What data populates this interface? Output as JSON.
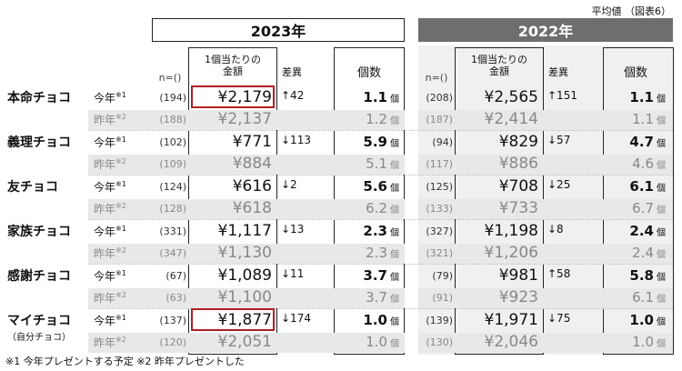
{
  "caption": "平均値 （図表6）",
  "year_headers": {
    "current": "2023年",
    "previous": "2022年"
  },
  "columns": {
    "n": "n=()",
    "amount_line1": "1個当たりの",
    "amount_line2": "金額",
    "diff": "差異",
    "count": "個数"
  },
  "labels": {
    "this_year": "今年",
    "last_year": "昨年",
    "mark1": "※1",
    "mark2": "※2",
    "unit": "個"
  },
  "rows": [
    {
      "category": "本命チョコ",
      "sub": "",
      "y2023": {
        "now_n": "(194)",
        "now_amt": "¥2,179",
        "diff": "↑42",
        "now_cnt": "1.1",
        "prev_n": "(188)",
        "prev_amt": "¥2,137",
        "prev_cnt": "1.2"
      },
      "y2022": {
        "now_n": "(208)",
        "now_amt": "¥2,565",
        "diff": "↑151",
        "now_cnt": "1.1",
        "prev_n": "(187)",
        "prev_amt": "¥2,414",
        "prev_cnt": "1.1"
      }
    },
    {
      "category": "義理チョコ",
      "sub": "",
      "y2023": {
        "now_n": "(102)",
        "now_amt": "¥771",
        "diff": "↓113",
        "now_cnt": "5.9",
        "prev_n": "(109)",
        "prev_amt": "¥884",
        "prev_cnt": "5.1"
      },
      "y2022": {
        "now_n": "(94)",
        "now_amt": "¥829",
        "diff": "↓57",
        "now_cnt": "4.7",
        "prev_n": "(117)",
        "prev_amt": "¥886",
        "prev_cnt": "4.6"
      }
    },
    {
      "category": "友チョコ",
      "sub": "",
      "y2023": {
        "now_n": "(124)",
        "now_amt": "¥616",
        "diff": "↓2",
        "now_cnt": "5.6",
        "prev_n": "(128)",
        "prev_amt": "¥618",
        "prev_cnt": "6.2"
      },
      "y2022": {
        "now_n": "(125)",
        "now_amt": "¥708",
        "diff": "↓25",
        "now_cnt": "6.1",
        "prev_n": "(133)",
        "prev_amt": "¥733",
        "prev_cnt": "6.7"
      }
    },
    {
      "category": "家族チョコ",
      "sub": "",
      "y2023": {
        "now_n": "(331)",
        "now_amt": "¥1,117",
        "diff": "↓13",
        "now_cnt": "2.3",
        "prev_n": "(347)",
        "prev_amt": "¥1,130",
        "prev_cnt": "2.3"
      },
      "y2022": {
        "now_n": "(327)",
        "now_amt": "¥1,198",
        "diff": "↓8",
        "now_cnt": "2.4",
        "prev_n": "(321)",
        "prev_amt": "¥1,206",
        "prev_cnt": "2.4"
      }
    },
    {
      "category": "感謝チョコ",
      "sub": "",
      "y2023": {
        "now_n": "(67)",
        "now_amt": "¥1,089",
        "diff": "↓11",
        "now_cnt": "3.7",
        "prev_n": "(63)",
        "prev_amt": "¥1,100",
        "prev_cnt": "3.7"
      },
      "y2022": {
        "now_n": "(79)",
        "now_amt": "¥981",
        "diff": "↑58",
        "now_cnt": "5.8",
        "prev_n": "(91)",
        "prev_amt": "¥923",
        "prev_cnt": "6.1"
      }
    },
    {
      "category": "マイチョコ",
      "sub": "（自分チョコ）",
      "y2023": {
        "now_n": "(137)",
        "now_amt": "¥1,877",
        "diff": "↓174",
        "now_cnt": "1.0",
        "prev_n": "(120)",
        "prev_amt": "¥2,051",
        "prev_cnt": "1.0"
      },
      "y2022": {
        "now_n": "(139)",
        "now_amt": "¥1,971",
        "diff": "↓75",
        "now_cnt": "1.0",
        "prev_n": "(130)",
        "prev_amt": "¥2,046",
        "prev_cnt": "1.0"
      }
    }
  ],
  "footnote": "※1 今年プレゼントする予定 ※2 昨年プレゼントした"
}
